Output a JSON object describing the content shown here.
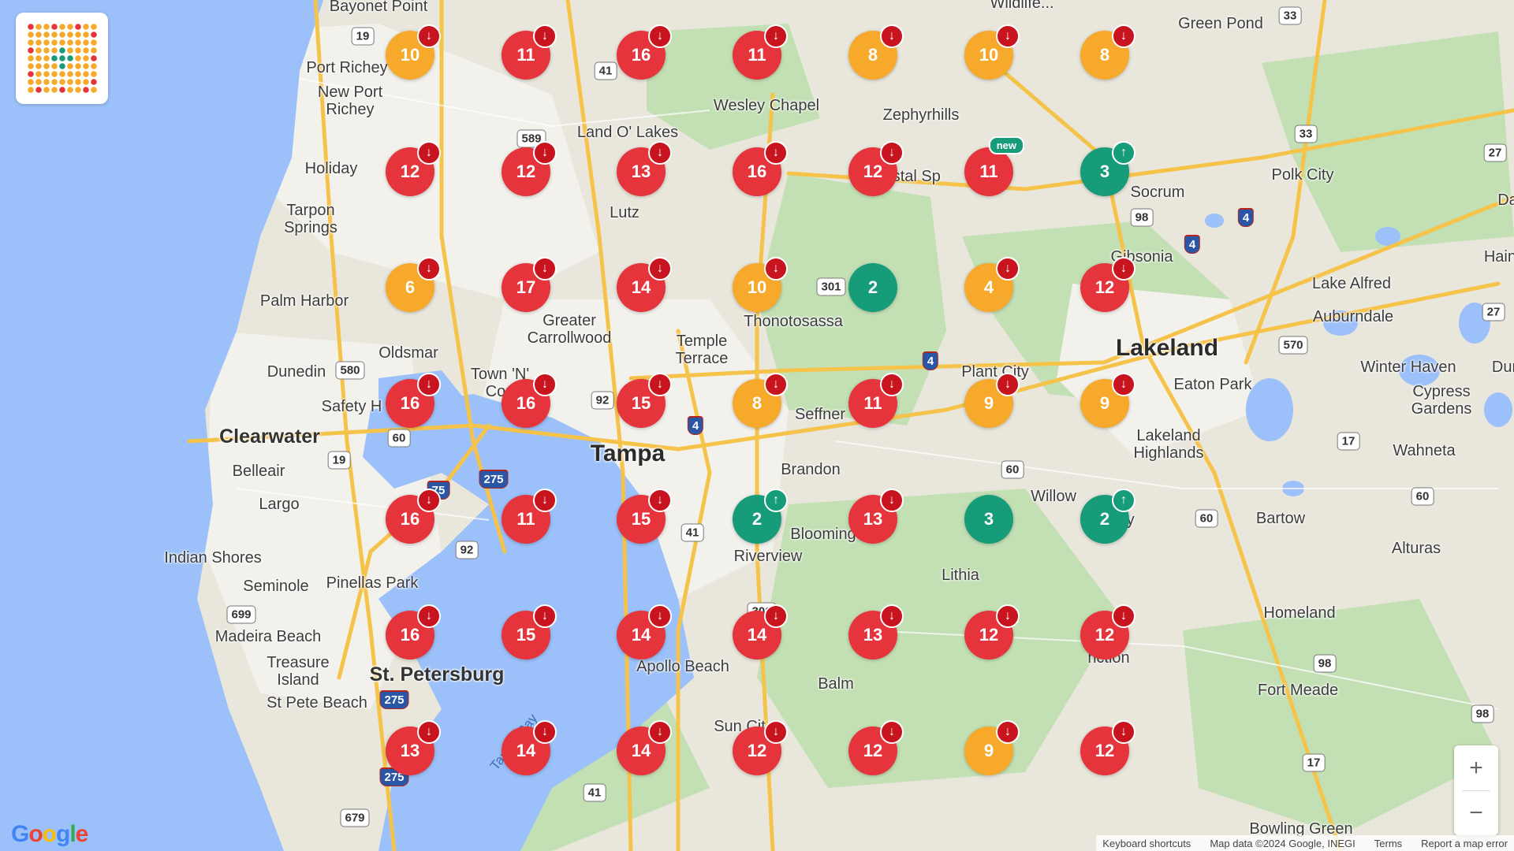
{
  "map": {
    "colors": {
      "water": "#9cc0f9",
      "land": "#e9e6dc",
      "park": "#c3e0b4",
      "urban": "#f3f1ec",
      "road": "#f6c34a",
      "red": "#e5343c",
      "orange": "#f6a92b",
      "green": "#169c78"
    },
    "places": [
      {
        "name": "Bayonet Point",
        "style": "normal"
      },
      {
        "name": "Port Richey",
        "style": "normal"
      },
      {
        "name": "New Port\nRichey",
        "style": "normal"
      },
      {
        "name": "Holiday",
        "style": "normal"
      },
      {
        "name": "Tarpon\nSprings",
        "style": "normal"
      },
      {
        "name": "Palm Harbor",
        "style": "normal"
      },
      {
        "name": "Oldsmar",
        "style": "normal"
      },
      {
        "name": "Dunedin",
        "style": "normal"
      },
      {
        "name": "Safety H",
        "style": "normal"
      },
      {
        "name": "Clearwater",
        "style": "mid"
      },
      {
        "name": "Belleair",
        "style": "normal"
      },
      {
        "name": "Largo",
        "style": "normal"
      },
      {
        "name": "Indian Shores",
        "style": "normal"
      },
      {
        "name": "Seminole",
        "style": "normal"
      },
      {
        "name": "Pinellas Park",
        "style": "normal"
      },
      {
        "name": "Madeira Beach",
        "style": "normal"
      },
      {
        "name": "Treasure\nIsland",
        "style": "normal"
      },
      {
        "name": "St. Petersburg",
        "style": "mid"
      },
      {
        "name": "St Pete Beach",
        "style": "normal"
      },
      {
        "name": "Land O' Lakes",
        "style": "normal"
      },
      {
        "name": "Lutz",
        "style": "normal"
      },
      {
        "name": "Wesley Chapel",
        "style": "normal"
      },
      {
        "name": "Zephyrhills",
        "style": "normal"
      },
      {
        "name": "rystal Sp",
        "style": "normal"
      },
      {
        "name": "Greater\nCarrollwood",
        "style": "normal"
      },
      {
        "name": "Temple\nTerrace",
        "style": "normal"
      },
      {
        "name": "Town 'N'\nCou",
        "style": "normal"
      },
      {
        "name": "Thonotosassa",
        "style": "normal"
      },
      {
        "name": "Tampa",
        "style": "big"
      },
      {
        "name": "Seffner",
        "style": "normal"
      },
      {
        "name": "Brandon",
        "style": "normal"
      },
      {
        "name": "Blooming",
        "style": "normal"
      },
      {
        "name": "Riverview",
        "style": "normal"
      },
      {
        "name": "Apollo Beach",
        "style": "normal"
      },
      {
        "name": "Balm",
        "style": "normal"
      },
      {
        "name": "Sun Cit",
        "style": "normal"
      },
      {
        "name": "Plant City",
        "style": "normal"
      },
      {
        "name": "Lithia",
        "style": "normal"
      },
      {
        "name": "Green Pond",
        "style": "normal"
      },
      {
        "name": "Polk City",
        "style": "normal"
      },
      {
        "name": "Socrum",
        "style": "normal"
      },
      {
        "name": "Gibsonia",
        "style": "normal"
      },
      {
        "name": "Lakeland",
        "style": "big"
      },
      {
        "name": "Lake Alfred",
        "style": "normal"
      },
      {
        "name": "Auburndale",
        "style": "normal"
      },
      {
        "name": "Winter Haven",
        "style": "normal"
      },
      {
        "name": "Eaton Park",
        "style": "normal"
      },
      {
        "name": "Cypress\nGardens",
        "style": "normal"
      },
      {
        "name": "Lakeland\nHighlands",
        "style": "normal"
      },
      {
        "name": "Wahneta",
        "style": "normal"
      },
      {
        "name": "Willow",
        "style": "normal"
      },
      {
        "name": "ulberry",
        "style": "normal"
      },
      {
        "name": "Bartow",
        "style": "normal"
      },
      {
        "name": "Alturas",
        "style": "normal"
      },
      {
        "name": "Homeland",
        "style": "normal"
      },
      {
        "name": "adley\nnction",
        "style": "normal"
      },
      {
        "name": "Fort Meade",
        "style": "normal"
      },
      {
        "name": "Bowling Green",
        "style": "normal"
      },
      {
        "name": "Haine",
        "style": "normal"
      },
      {
        "name": "Da",
        "style": "normal"
      },
      {
        "name": "Dur",
        "style": "normal"
      },
      {
        "name": "Wildlife...",
        "style": "normal"
      },
      {
        "name": "Tampa Bay",
        "style": "water"
      }
    ],
    "shields": [
      {
        "label": "19",
        "type": "us"
      },
      {
        "label": "41",
        "type": "us"
      },
      {
        "label": "589",
        "type": "state"
      },
      {
        "label": "580",
        "type": "state"
      },
      {
        "label": "60",
        "type": "state"
      },
      {
        "label": "19",
        "type": "us"
      },
      {
        "label": "92",
        "type": "us"
      },
      {
        "label": "4",
        "type": "i"
      },
      {
        "label": "275",
        "type": "i"
      },
      {
        "label": "92",
        "type": "us"
      },
      {
        "label": "41",
        "type": "us"
      },
      {
        "label": "301",
        "type": "us"
      },
      {
        "label": "4",
        "type": "i"
      },
      {
        "label": "60",
        "type": "state"
      },
      {
        "label": "699",
        "type": "state"
      },
      {
        "label": "275",
        "type": "i"
      },
      {
        "label": "41",
        "type": "us"
      },
      {
        "label": "679",
        "type": "state"
      },
      {
        "label": "33",
        "type": "state"
      },
      {
        "label": "33",
        "type": "state"
      },
      {
        "label": "98",
        "type": "us"
      },
      {
        "label": "4",
        "type": "i"
      },
      {
        "label": "4",
        "type": "i"
      },
      {
        "label": "570",
        "type": "state"
      },
      {
        "label": "27",
        "type": "us"
      },
      {
        "label": "27",
        "type": "us"
      },
      {
        "label": "17",
        "type": "us"
      },
      {
        "label": "60",
        "type": "state"
      },
      {
        "label": "60",
        "type": "state"
      },
      {
        "label": "98",
        "type": "us"
      },
      {
        "label": "17",
        "type": "us"
      },
      {
        "label": "98",
        "type": "us"
      },
      {
        "label": "75",
        "type": "i"
      },
      {
        "label": "275",
        "type": "i"
      },
      {
        "label": "301",
        "type": "us"
      }
    ]
  },
  "grid": {
    "rows": [
      [
        {
          "v": "10",
          "c": "orange",
          "t": "down"
        },
        {
          "v": "11",
          "c": "red",
          "t": "down"
        },
        {
          "v": "16",
          "c": "red",
          "t": "down"
        },
        {
          "v": "11",
          "c": "red",
          "t": "down"
        },
        {
          "v": "8",
          "c": "orange",
          "t": "down"
        },
        {
          "v": "10",
          "c": "orange",
          "t": "down"
        },
        {
          "v": "8",
          "c": "orange",
          "t": "down"
        }
      ],
      [
        {
          "v": "12",
          "c": "red",
          "t": "down"
        },
        {
          "v": "12",
          "c": "red",
          "t": "down"
        },
        {
          "v": "13",
          "c": "red",
          "t": "down"
        },
        {
          "v": "16",
          "c": "red",
          "t": "down"
        },
        {
          "v": "12",
          "c": "red",
          "t": "down"
        },
        {
          "v": "11",
          "c": "red",
          "t": "new"
        },
        {
          "v": "3",
          "c": "green",
          "t": "up"
        }
      ],
      [
        {
          "v": "6",
          "c": "orange",
          "t": "down"
        },
        {
          "v": "17",
          "c": "red",
          "t": "down"
        },
        {
          "v": "14",
          "c": "red",
          "t": "down"
        },
        {
          "v": "10",
          "c": "orange",
          "t": "down"
        },
        {
          "v": "2",
          "c": "green",
          "t": ""
        },
        {
          "v": "4",
          "c": "orange",
          "t": "down"
        },
        {
          "v": "12",
          "c": "red",
          "t": "down"
        }
      ],
      [
        {
          "v": "16",
          "c": "red",
          "t": "down"
        },
        {
          "v": "16",
          "c": "red",
          "t": "down"
        },
        {
          "v": "15",
          "c": "red",
          "t": "down"
        },
        {
          "v": "8",
          "c": "orange",
          "t": "down"
        },
        {
          "v": "11",
          "c": "red",
          "t": "down"
        },
        {
          "v": "9",
          "c": "orange",
          "t": "down"
        },
        {
          "v": "9",
          "c": "orange",
          "t": "down"
        }
      ],
      [
        {
          "v": "16",
          "c": "red",
          "t": "down"
        },
        {
          "v": "11",
          "c": "red",
          "t": "down"
        },
        {
          "v": "15",
          "c": "red",
          "t": "down"
        },
        {
          "v": "2",
          "c": "green",
          "t": "up"
        },
        {
          "v": "13",
          "c": "red",
          "t": "down"
        },
        {
          "v": "3",
          "c": "green",
          "t": ""
        },
        {
          "v": "2",
          "c": "green",
          "t": "up"
        }
      ],
      [
        {
          "v": "16",
          "c": "red",
          "t": "down"
        },
        {
          "v": "15",
          "c": "red",
          "t": "down"
        },
        {
          "v": "14",
          "c": "red",
          "t": "down"
        },
        {
          "v": "14",
          "c": "red",
          "t": "down"
        },
        {
          "v": "13",
          "c": "red",
          "t": "down"
        },
        {
          "v": "12",
          "c": "red",
          "t": "down"
        },
        {
          "v": "12",
          "c": "red",
          "t": "down"
        }
      ],
      [
        {
          "v": "13",
          "c": "red",
          "t": "down"
        },
        {
          "v": "14",
          "c": "red",
          "t": "down"
        },
        {
          "v": "14",
          "c": "red",
          "t": "down"
        },
        {
          "v": "12",
          "c": "red",
          "t": "down"
        },
        {
          "v": "12",
          "c": "red",
          "t": "down"
        },
        {
          "v": "9",
          "c": "orange",
          "t": "down"
        },
        {
          "v": "12",
          "c": "red",
          "t": "down"
        }
      ]
    ],
    "new_label": "new",
    "down_glyph": "↓",
    "up_glyph": "↑"
  },
  "controls": {
    "zoom_in": "+",
    "zoom_out": "−",
    "google_logo": "Google"
  },
  "attribution": {
    "shortcuts": "Keyboard shortcuts",
    "map_data": "Map data ©2024 Google, INEGI",
    "terms": "Terms",
    "report": "Report a map error"
  }
}
